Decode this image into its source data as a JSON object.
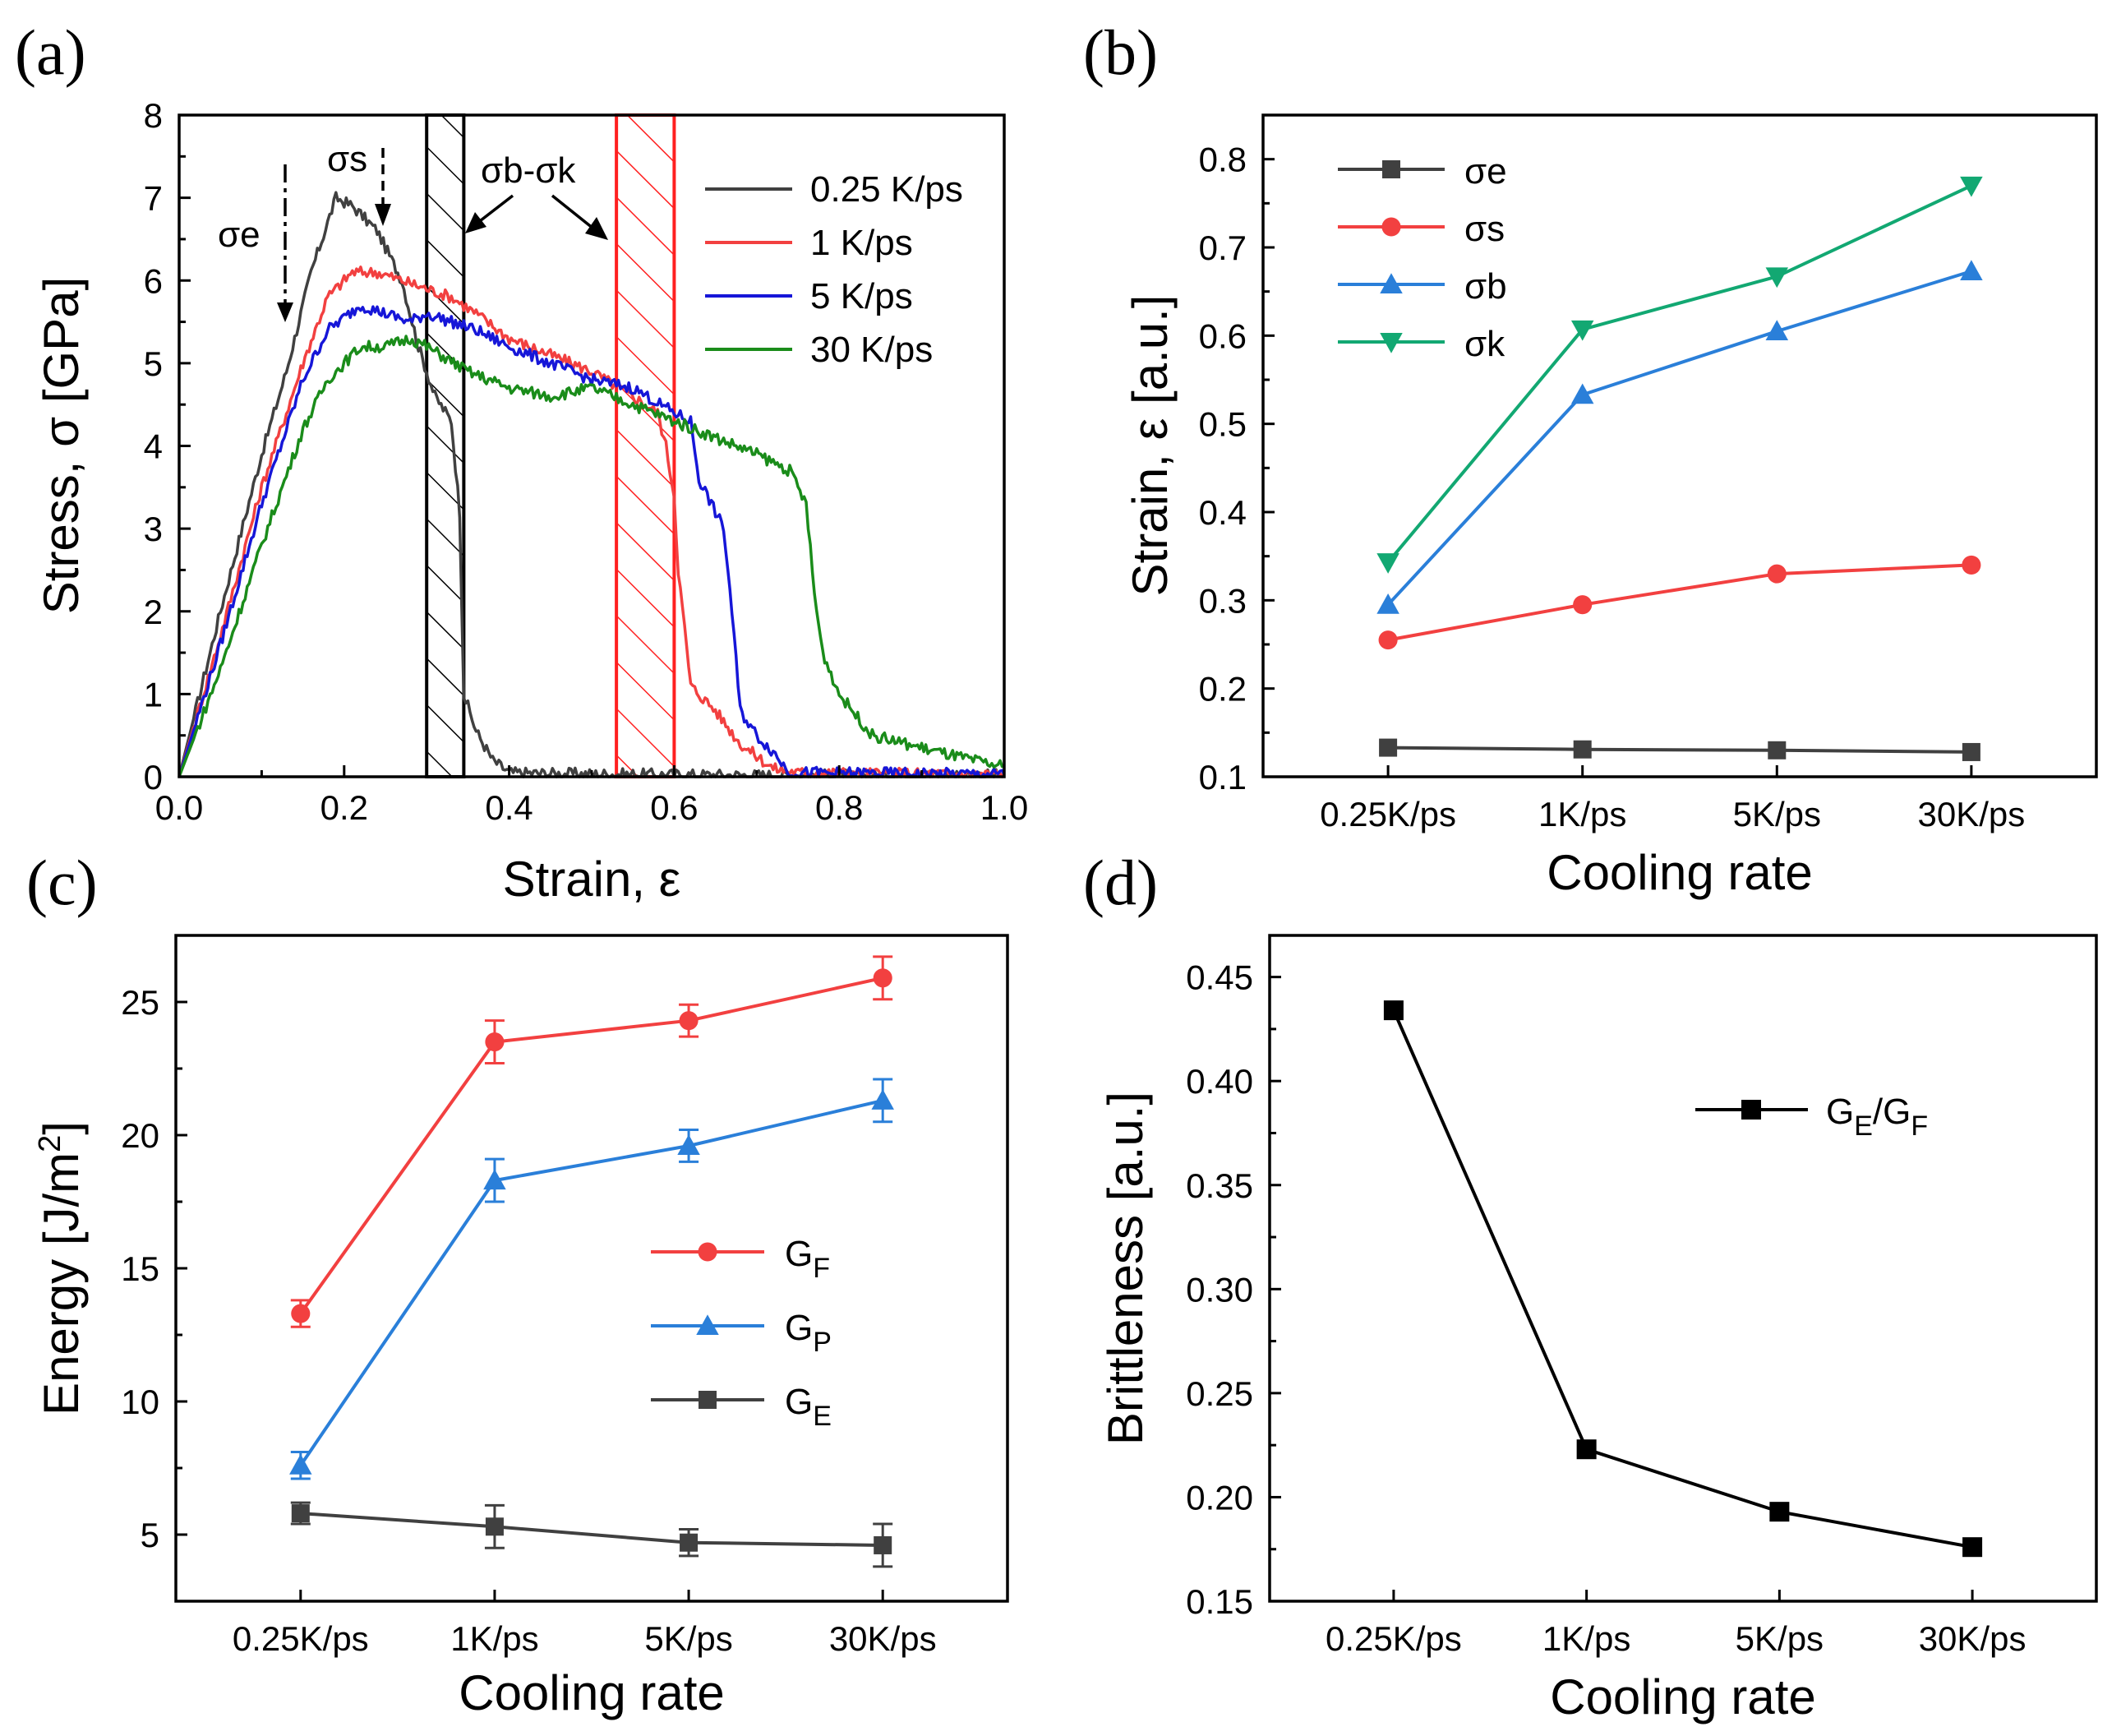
{
  "figure": {
    "panels": [
      "(a)",
      "(b)",
      "(c)",
      "(d)"
    ]
  },
  "colors": {
    "gray": "#404040",
    "red": "#f24040",
    "blue": "#1616d8",
    "green": "#1a8c1a",
    "lightblue": "#2a7fd9",
    "teal": "#12a872",
    "black": "#000000",
    "hatch_red": "#ff2020"
  },
  "chart_data": [
    {
      "id": "a",
      "type": "line",
      "xlabel": "Strain, ε",
      "ylabel": "Stress, σ [GPa]",
      "xlim": [
        0,
        1.0
      ],
      "ylim": [
        0,
        8
      ],
      "xticks": [
        "0.0",
        "0.2",
        "0.4",
        "0.6",
        "0.8",
        "1.0"
      ],
      "yticks": [
        "0",
        "1",
        "2",
        "3",
        "4",
        "5",
        "6",
        "7",
        "8"
      ],
      "annotations": {
        "sigma_e": "σe",
        "sigma_s": "σs",
        "sigma_bk": "σb-σk"
      },
      "hatched_regions": [
        {
          "x0": 0.3,
          "x1": 0.345,
          "color": "black"
        },
        {
          "x0": 0.53,
          "x1": 0.6,
          "color": "red"
        }
      ],
      "series": [
        {
          "name": "0.25 K/ps",
          "color_key": "gray",
          "x": [
            0,
            0.05,
            0.1,
            0.13,
            0.16,
            0.19,
            0.21,
            0.24,
            0.27,
            0.29,
            0.31,
            0.33,
            0.34,
            0.345,
            0.36,
            0.38,
            0.4,
            0.45,
            0.55,
            0.7,
            1.0
          ],
          "y": [
            0,
            2.0,
            3.9,
            4.9,
            6.1,
            7.0,
            6.9,
            6.6,
            6.0,
            5.2,
            4.6,
            4.3,
            3.2,
            1.0,
            0.55,
            0.2,
            0.05,
            0.04,
            0.03,
            0.02,
            0.02
          ]
        },
        {
          "name": "1 K/ps",
          "color_key": "red",
          "x": [
            0,
            0.05,
            0.1,
            0.15,
            0.18,
            0.21,
            0.24,
            0.27,
            0.3,
            0.33,
            0.36,
            0.4,
            0.45,
            0.5,
            0.55,
            0.58,
            0.59,
            0.6,
            0.605,
            0.62,
            0.65,
            0.68,
            0.72,
            0.75,
            1.0
          ],
          "y": [
            0,
            1.7,
            3.5,
            5.0,
            5.8,
            6.1,
            6.1,
            6.0,
            5.9,
            5.8,
            5.6,
            5.3,
            5.1,
            4.9,
            4.6,
            4.4,
            4.0,
            3.4,
            2.5,
            1.1,
            0.8,
            0.4,
            0.1,
            0.05,
            0.03
          ]
        },
        {
          "name": "5 K/ps",
          "color_key": "blue",
          "x": [
            0,
            0.05,
            0.1,
            0.15,
            0.18,
            0.22,
            0.25,
            0.28,
            0.3,
            0.33,
            0.36,
            0.4,
            0.45,
            0.5,
            0.55,
            0.6,
            0.62,
            0.63,
            0.64,
            0.66,
            0.67,
            0.68,
            0.7,
            0.72,
            0.74,
            1.0
          ],
          "y": [
            0,
            1.6,
            3.3,
            4.8,
            5.4,
            5.7,
            5.6,
            5.5,
            5.6,
            5.5,
            5.4,
            5.2,
            5.0,
            4.8,
            4.7,
            4.4,
            4.3,
            3.6,
            3.4,
            3.0,
            2.0,
            0.8,
            0.5,
            0.3,
            0.05,
            0.03
          ]
        },
        {
          "name": "30 K/ps",
          "color_key": "green",
          "x": [
            0,
            0.05,
            0.1,
            0.15,
            0.18,
            0.22,
            0.25,
            0.28,
            0.3,
            0.35,
            0.4,
            0.45,
            0.5,
            0.55,
            0.6,
            0.65,
            0.7,
            0.74,
            0.76,
            0.77,
            0.78,
            0.8,
            0.84,
            0.88,
            0.92,
            0.96,
            1.0
          ],
          "y": [
            0,
            1.3,
            2.8,
            4.2,
            4.8,
            5.2,
            5.2,
            5.3,
            5.2,
            4.9,
            4.7,
            4.6,
            4.7,
            4.5,
            4.3,
            4.1,
            3.9,
            3.7,
            3.3,
            2.2,
            1.5,
            1.0,
            0.5,
            0.4,
            0.3,
            0.2,
            0.12
          ]
        }
      ]
    },
    {
      "id": "b",
      "type": "line",
      "xlabel": "Cooling rate",
      "ylabel": "Strain, ε [a.u.]",
      "categories": [
        "0.25K/ps",
        "1K/ps",
        "5K/ps",
        "30K/ps"
      ],
      "ylim": [
        0.1,
        0.85
      ],
      "yticks": [
        "0.1",
        "0.2",
        "0.3",
        "0.4",
        "0.5",
        "0.6",
        "0.7",
        "0.8"
      ],
      "series": [
        {
          "name": "σe",
          "color_key": "gray",
          "marker": "square",
          "values": [
            0.133,
            0.131,
            0.13,
            0.128
          ]
        },
        {
          "name": "σs",
          "color_key": "red",
          "marker": "circle",
          "values": [
            0.255,
            0.295,
            0.33,
            0.34
          ]
        },
        {
          "name": "σb",
          "color_key": "lightblue",
          "marker": "triangle-up",
          "values": [
            0.295,
            0.533,
            0.605,
            0.673
          ]
        },
        {
          "name": "σk",
          "color_key": "teal",
          "marker": "triangle-down",
          "values": [
            0.343,
            0.607,
            0.667,
            0.77
          ]
        }
      ]
    },
    {
      "id": "c",
      "type": "line",
      "xlabel": "Cooling rate",
      "ylabel": "Energy [J/m²]",
      "categories": [
        "0.25K/ps",
        "1K/ps",
        "5K/ps",
        "30K/ps"
      ],
      "ylim": [
        2.5,
        27.5
      ],
      "yticks": [
        "5",
        "10",
        "15",
        "20",
        "25"
      ],
      "series": [
        {
          "name": "G",
          "sub": "F",
          "color_key": "red",
          "marker": "circle",
          "values": [
            13.3,
            23.5,
            24.3,
            25.9
          ],
          "errors": [
            0.5,
            0.8,
            0.6,
            0.8
          ]
        },
        {
          "name": "G",
          "sub": "P",
          "color_key": "lightblue",
          "marker": "triangle-up",
          "values": [
            7.6,
            18.3,
            19.6,
            21.3
          ],
          "errors": [
            0.5,
            0.8,
            0.6,
            0.8
          ]
        },
        {
          "name": "G",
          "sub": "E",
          "color_key": "gray",
          "marker": "square",
          "values": [
            5.8,
            5.3,
            4.7,
            4.6
          ],
          "errors": [
            0.4,
            0.8,
            0.5,
            0.8
          ]
        }
      ]
    },
    {
      "id": "d",
      "type": "line",
      "xlabel": "Cooling rate",
      "ylabel": "Brittleness [a.u.]",
      "categories": [
        "0.25K/ps",
        "1K/ps",
        "5K/ps",
        "30K/ps"
      ],
      "ylim": [
        0.15,
        0.47
      ],
      "yticks": [
        "0.15",
        "0.20",
        "0.25",
        "0.30",
        "0.35",
        "0.40",
        "0.45"
      ],
      "series": [
        {
          "name": "G",
          "sub": "E",
          "sep": "/",
          "name2": "G",
          "sub2": "F",
          "color_key": "black",
          "marker": "square",
          "values": [
            0.434,
            0.223,
            0.193,
            0.176
          ]
        }
      ]
    }
  ]
}
